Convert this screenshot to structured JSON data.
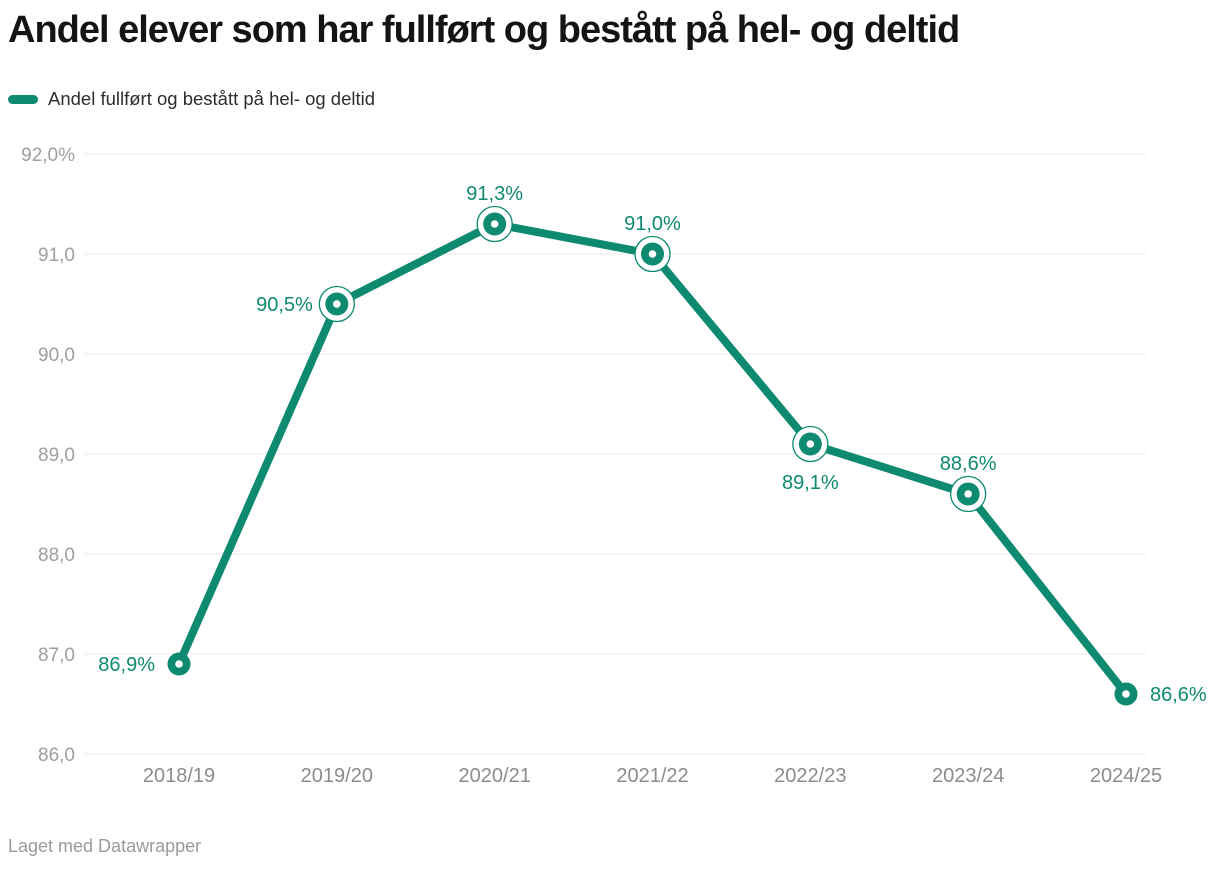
{
  "header": {
    "title": "Andel elever som har fullført og bestått på hel- og deltid",
    "legend": {
      "label": "Andel fullført og bestått på hel- og deltid",
      "swatch_color": "#0d8a6f"
    }
  },
  "footer": {
    "attribution": "Laget med Datawrapper"
  },
  "colors": {
    "accent": "#0d8a6f",
    "grid": "#e8e8e8",
    "y_tick_text": "#9e9e9e",
    "x_tick_text": "#8c8c8c",
    "title_text": "#141414",
    "legend_text": "#2d2d2d",
    "footer_text": "#9b9b9b",
    "marker_center": "#ffffff",
    "background": "#ffffff"
  },
  "chart_data": {
    "type": "line",
    "title": "Andel elever som har fullført og bestått på hel- og deltid",
    "categories": [
      "2018/19",
      "2019/20",
      "2020/21",
      "2021/22",
      "2022/23",
      "2023/24",
      "2024/25"
    ],
    "series": [
      {
        "name": "Andel fullført og bestått på hel- og deltid",
        "values": [
          86.9,
          90.5,
          91.3,
          91.0,
          89.1,
          88.6,
          86.6
        ],
        "color": "#0d8a6f"
      }
    ],
    "point_labels": [
      "86,9%",
      "90,5%",
      "91,3%",
      "91,0%",
      "89,1%",
      "88,6%",
      "86,6%"
    ],
    "point_label_positions": [
      "left",
      "left",
      "top",
      "top",
      "bottom",
      "top",
      "right"
    ],
    "point_has_ring": [
      false,
      true,
      true,
      true,
      true,
      true,
      false
    ],
    "y_ticks": [
      {
        "value": 92,
        "label": "92,0%"
      },
      {
        "value": 91,
        "label": "91,0"
      },
      {
        "value": 90,
        "label": "90,0"
      },
      {
        "value": 89,
        "label": "89,0"
      },
      {
        "value": 88,
        "label": "88,0"
      },
      {
        "value": 87,
        "label": "87,0"
      },
      {
        "value": 86,
        "label": "86,0"
      }
    ],
    "ylim": [
      86,
      92
    ],
    "xlabel": "",
    "ylabel": "",
    "grid": true,
    "legend_position": "top-left",
    "decimal_separator": ",",
    "attribution": "Laget med Datawrapper"
  }
}
